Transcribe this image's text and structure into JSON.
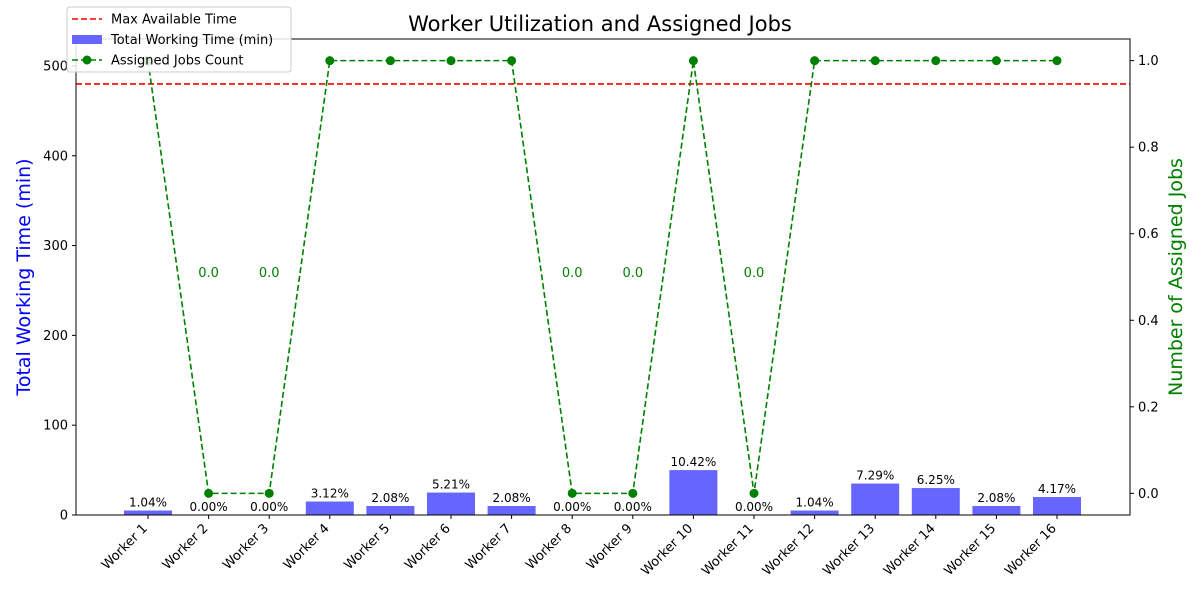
{
  "chart_data": {
    "type": "bar+line",
    "title": "Worker Utilization and Assigned Jobs",
    "ylabel_left": "Total Working Time (min)",
    "ylabel_right": "Number of Assigned Jobs",
    "ylim_left": [
      0,
      530
    ],
    "ylim_right": [
      -0.05,
      1.05
    ],
    "yticks_left": [
      "0",
      "100",
      "200",
      "300",
      "400",
      "500"
    ],
    "yticks_right": [
      "0.0",
      "0.2",
      "0.4",
      "0.6",
      "0.8",
      "1.0"
    ],
    "categories": [
      "Worker 1",
      "Worker 2",
      "Worker 3",
      "Worker 4",
      "Worker 5",
      "Worker 6",
      "Worker 7",
      "Worker 8",
      "Worker 9",
      "Worker 10",
      "Worker 11",
      "Worker 12",
      "Worker 13",
      "Worker 14",
      "Worker 15",
      "Worker 16"
    ],
    "max_available_time": 480,
    "series": [
      {
        "name": "Total Working Time (min)",
        "kind": "bar",
        "color": "#6666ff",
        "values": [
          5,
          0,
          0,
          15,
          10,
          25,
          10,
          0,
          0,
          50,
          0,
          5,
          35,
          30,
          10,
          20
        ],
        "labels": [
          "1.04%",
          "0.00%",
          "0.00%",
          "3.12%",
          "2.08%",
          "5.21%",
          "2.08%",
          "0.00%",
          "0.00%",
          "10.42%",
          "0.00%",
          "1.04%",
          "7.29%",
          "6.25%",
          "2.08%",
          "4.17%"
        ]
      },
      {
        "name": "Assigned Jobs Count",
        "kind": "line",
        "color": "#008000",
        "values": [
          1,
          0,
          0,
          1,
          1,
          1,
          1,
          0,
          0,
          1,
          0,
          1,
          1,
          1,
          1,
          1
        ],
        "annotations": [
          "",
          "0.0",
          "0.0",
          "",
          "",
          "",
          "",
          "0.0",
          "0.0",
          "",
          "0.0",
          "",
          "",
          "",
          "",
          ""
        ]
      }
    ],
    "reference_line": {
      "name": "Max Available Time",
      "value": 480,
      "color": "#ff0000"
    },
    "legend": {
      "position": "upper-left",
      "entries": [
        "Max Available Time",
        "Total Working Time (min)",
        "Assigned Jobs Count"
      ]
    },
    "colors": {
      "left_axis_label": "#0000ff",
      "right_axis_label": "#008000"
    }
  }
}
